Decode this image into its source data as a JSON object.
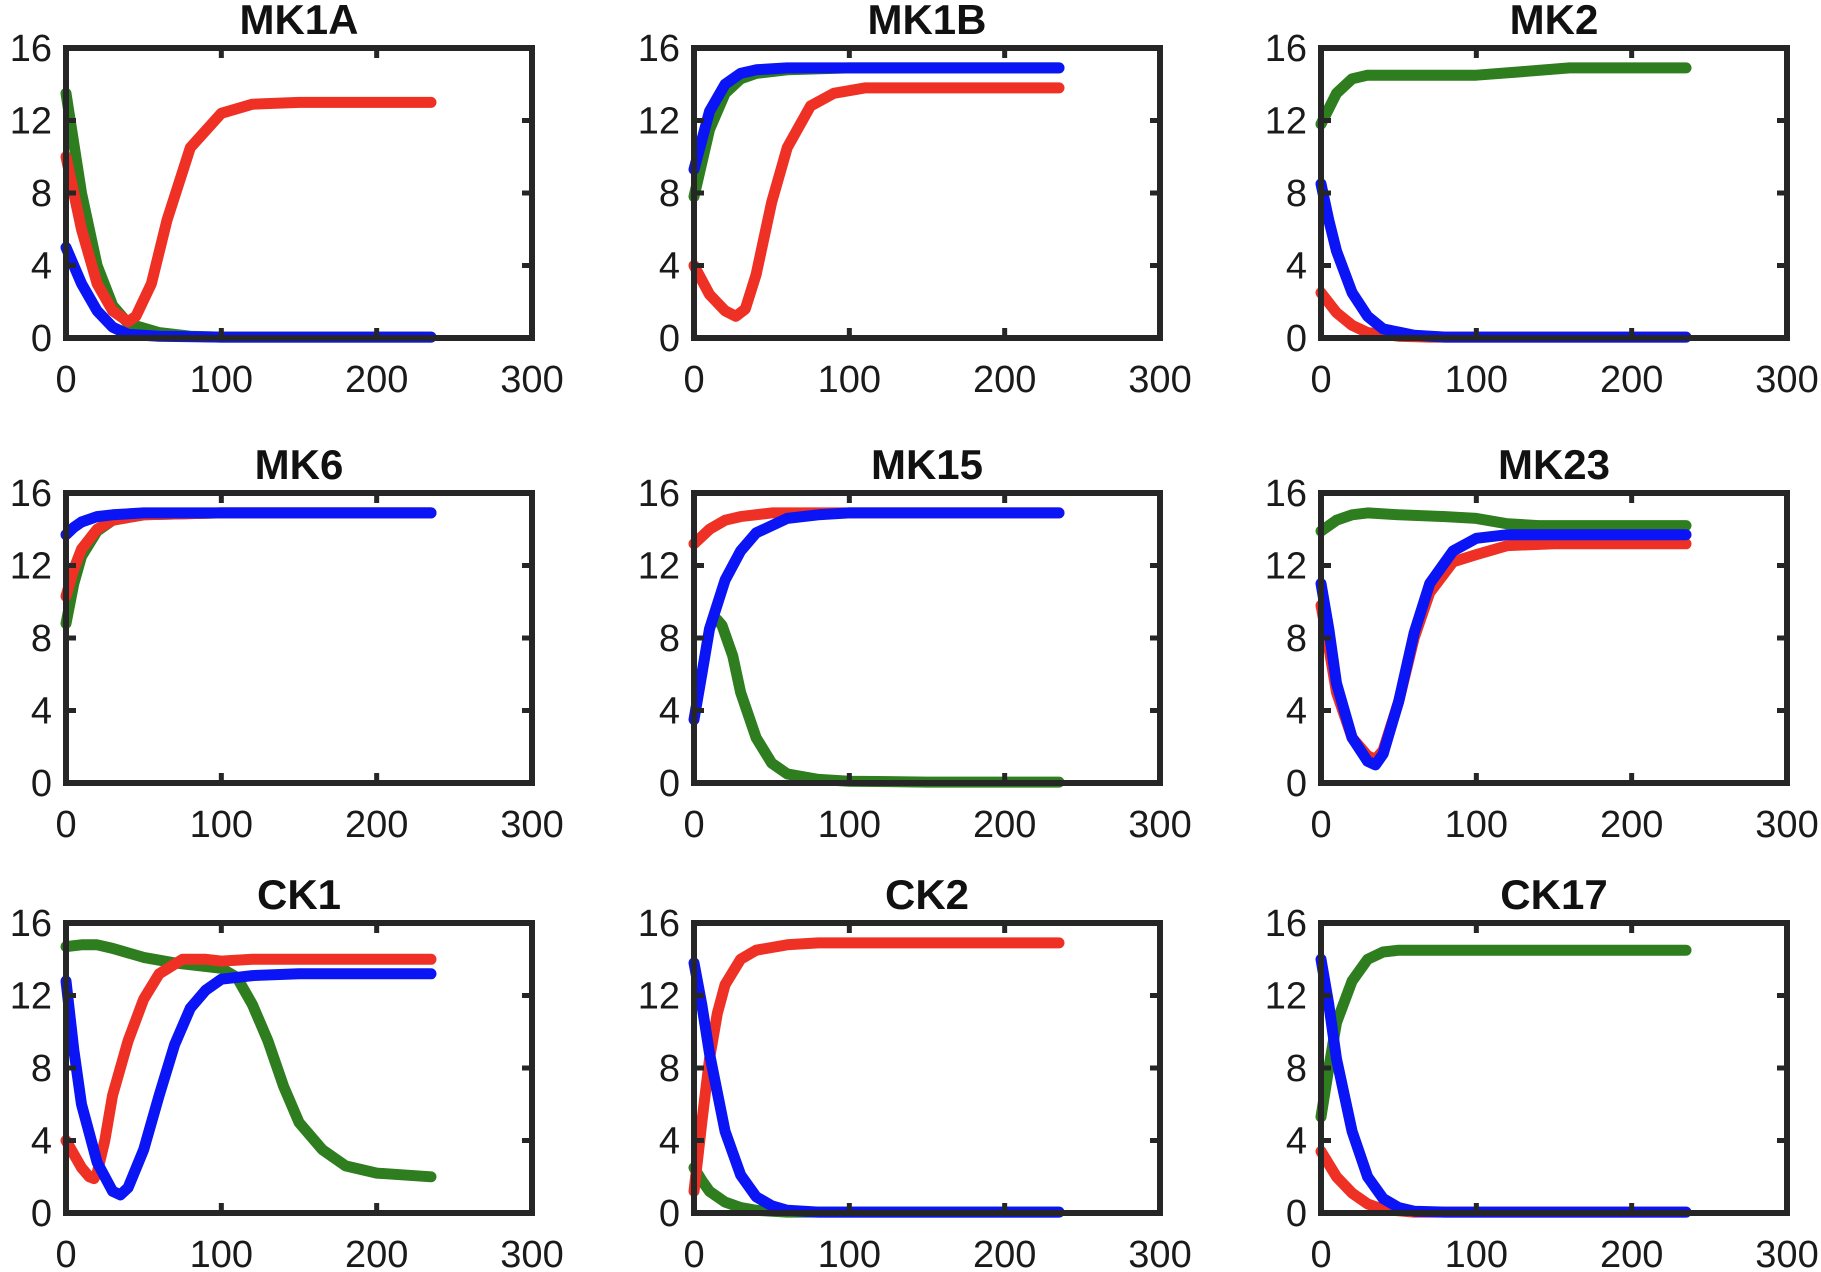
{
  "colors": {
    "red": "#ee3124",
    "green": "#2e7d1e",
    "blue": "#0a14f5"
  },
  "chart_data": [
    {
      "type": "line",
      "title": "MK1A",
      "xlim": [
        0,
        300
      ],
      "ylim": [
        0,
        16
      ],
      "xticks": [
        0,
        100,
        200,
        300
      ],
      "yticks": [
        0,
        4,
        8,
        12,
        16
      ],
      "series": [
        {
          "name": "green",
          "color_key": "green",
          "x": [
            0,
            10,
            20,
            30,
            40,
            60,
            80,
            100,
            150,
            235
          ],
          "y": [
            13.5,
            8,
            4,
            1.8,
            0.8,
            0.3,
            0.1,
            0.05,
            0.05,
            0.05
          ]
        },
        {
          "name": "red",
          "color_key": "red",
          "x": [
            0,
            10,
            20,
            30,
            40,
            45,
            55,
            65,
            80,
            100,
            120,
            150,
            200,
            235
          ],
          "y": [
            10,
            6,
            3,
            1.5,
            0.9,
            1.2,
            3,
            6.5,
            10.5,
            12.4,
            12.9,
            13,
            13,
            13
          ]
        },
        {
          "name": "blue",
          "color_key": "blue",
          "x": [
            0,
            10,
            20,
            30,
            40,
            60,
            100,
            150,
            235
          ],
          "y": [
            5,
            3,
            1.5,
            0.6,
            0.2,
            0.1,
            0.05,
            0.05,
            0.05
          ]
        }
      ]
    },
    {
      "type": "line",
      "title": "MK1B",
      "xlim": [
        0,
        300
      ],
      "ylim": [
        0,
        16
      ],
      "xticks": [
        0,
        100,
        200,
        300
      ],
      "yticks": [
        0,
        4,
        8,
        12,
        16
      ],
      "series": [
        {
          "name": "green",
          "color_key": "green",
          "x": [
            0,
            10,
            20,
            30,
            40,
            60,
            100,
            150,
            235
          ],
          "y": [
            7.8,
            11.5,
            13.5,
            14.3,
            14.6,
            14.8,
            14.9,
            14.9,
            14.9
          ]
        },
        {
          "name": "blue",
          "color_key": "blue",
          "x": [
            0,
            10,
            20,
            30,
            40,
            60,
            100,
            150,
            235
          ],
          "y": [
            9.3,
            12.5,
            14,
            14.6,
            14.8,
            14.9,
            14.9,
            14.9,
            14.9
          ]
        },
        {
          "name": "red",
          "color_key": "red",
          "x": [
            0,
            10,
            20,
            27,
            33,
            40,
            50,
            60,
            75,
            90,
            110,
            150,
            235
          ],
          "y": [
            4,
            2.4,
            1.5,
            1.2,
            1.6,
            3.5,
            7.5,
            10.5,
            12.8,
            13.5,
            13.8,
            13.8,
            13.8
          ]
        }
      ]
    },
    {
      "type": "line",
      "title": "MK2",
      "xlim": [
        0,
        300
      ],
      "ylim": [
        0,
        16
      ],
      "xticks": [
        0,
        100,
        200,
        300
      ],
      "yticks": [
        0,
        4,
        8,
        12,
        16
      ],
      "series": [
        {
          "name": "green",
          "color_key": "green",
          "x": [
            0,
            10,
            20,
            30,
            50,
            80,
            100,
            130,
            160,
            200,
            235
          ],
          "y": [
            11.8,
            13.5,
            14.3,
            14.5,
            14.5,
            14.5,
            14.5,
            14.7,
            14.9,
            14.9,
            14.9
          ]
        },
        {
          "name": "red",
          "color_key": "red",
          "x": [
            0,
            10,
            20,
            30,
            50,
            70,
            100,
            235
          ],
          "y": [
            2.5,
            1.4,
            0.7,
            0.3,
            0.1,
            0.05,
            0.05,
            0.05
          ]
        },
        {
          "name": "blue",
          "color_key": "blue",
          "x": [
            0,
            5,
            10,
            20,
            30,
            40,
            60,
            80,
            100,
            235
          ],
          "y": [
            8.5,
            6.5,
            4.8,
            2.5,
            1.2,
            0.5,
            0.15,
            0.05,
            0.05,
            0.05
          ]
        }
      ]
    },
    {
      "type": "line",
      "title": "MK6",
      "xlim": [
        0,
        300
      ],
      "ylim": [
        0,
        16
      ],
      "xticks": [
        0,
        100,
        200,
        300
      ],
      "yticks": [
        0,
        4,
        8,
        12,
        16
      ],
      "series": [
        {
          "name": "green",
          "color_key": "green",
          "x": [
            0,
            5,
            10,
            20,
            30,
            50,
            100,
            235
          ],
          "y": [
            8.8,
            11,
            12.5,
            13.9,
            14.5,
            14.8,
            14.9,
            14.9
          ]
        },
        {
          "name": "red",
          "color_key": "red",
          "x": [
            0,
            5,
            10,
            20,
            30,
            50,
            100,
            235
          ],
          "y": [
            10.3,
            11.8,
            12.9,
            14,
            14.5,
            14.8,
            14.9,
            14.9
          ]
        },
        {
          "name": "blue",
          "color_key": "blue",
          "x": [
            0,
            5,
            10,
            20,
            30,
            50,
            100,
            235
          ],
          "y": [
            13.7,
            14.1,
            14.4,
            14.7,
            14.8,
            14.9,
            14.9,
            14.9
          ]
        }
      ]
    },
    {
      "type": "line",
      "title": "MK15",
      "xlim": [
        0,
        300
      ],
      "ylim": [
        0,
        16
      ],
      "xticks": [
        0,
        100,
        200,
        300
      ],
      "yticks": [
        0,
        4,
        8,
        12,
        16
      ],
      "series": [
        {
          "name": "red",
          "color_key": "red",
          "x": [
            0,
            10,
            20,
            30,
            50,
            70,
            100,
            235
          ],
          "y": [
            13.2,
            14,
            14.5,
            14.7,
            14.9,
            14.9,
            14.9,
            14.9
          ]
        },
        {
          "name": "green",
          "color_key": "green",
          "x": [
            15,
            18,
            25,
            30,
            40,
            50,
            60,
            80,
            100,
            150,
            235
          ],
          "y": [
            9,
            8.7,
            7,
            5,
            2.5,
            1.1,
            0.5,
            0.2,
            0.1,
            0.05,
            0.05
          ]
        },
        {
          "name": "blue",
          "color_key": "blue",
          "x": [
            0,
            5,
            10,
            20,
            30,
            40,
            60,
            80,
            100,
            235
          ],
          "y": [
            3.5,
            6,
            8.5,
            11.2,
            12.8,
            13.8,
            14.6,
            14.8,
            14.9,
            14.9
          ]
        }
      ]
    },
    {
      "type": "line",
      "title": "MK23",
      "xlim": [
        0,
        300
      ],
      "ylim": [
        0,
        16
      ],
      "xticks": [
        0,
        100,
        200,
        300
      ],
      "yticks": [
        0,
        4,
        8,
        12,
        16
      ],
      "series": [
        {
          "name": "green",
          "color_key": "green",
          "x": [
            0,
            10,
            20,
            30,
            50,
            80,
            100,
            120,
            140,
            200,
            235
          ],
          "y": [
            13.9,
            14.5,
            14.8,
            14.9,
            14.8,
            14.7,
            14.6,
            14.3,
            14.2,
            14.2,
            14.2
          ]
        },
        {
          "name": "red",
          "color_key": "red",
          "x": [
            0,
            5,
            10,
            20,
            30,
            35,
            40,
            50,
            60,
            70,
            85,
            100,
            120,
            150,
            235
          ],
          "y": [
            9.8,
            7.5,
            5,
            2.5,
            1.5,
            1.3,
            1.8,
            4.5,
            8,
            10.5,
            12.2,
            12.6,
            13.1,
            13.2,
            13.2
          ]
        },
        {
          "name": "blue",
          "color_key": "blue",
          "x": [
            0,
            5,
            10,
            20,
            30,
            35,
            40,
            50,
            60,
            70,
            85,
            100,
            120,
            150,
            235
          ],
          "y": [
            11,
            8.5,
            5.5,
            2.5,
            1.2,
            1,
            1.6,
            4.5,
            8.3,
            11,
            12.8,
            13.5,
            13.7,
            13.7,
            13.7
          ]
        }
      ]
    },
    {
      "type": "line",
      "title": "CK1",
      "xlim": [
        0,
        300
      ],
      "ylim": [
        0,
        16
      ],
      "xticks": [
        0,
        100,
        200,
        300
      ],
      "yticks": [
        0,
        4,
        8,
        12,
        16
      ],
      "series": [
        {
          "name": "green",
          "color_key": "green",
          "x": [
            0,
            10,
            20,
            30,
            50,
            70,
            100,
            110,
            120,
            130,
            140,
            150,
            165,
            180,
            200,
            235
          ],
          "y": [
            14.7,
            14.8,
            14.8,
            14.6,
            14.1,
            13.8,
            13.5,
            13,
            11.5,
            9.5,
            7,
            5,
            3.5,
            2.6,
            2.2,
            2
          ]
        },
        {
          "name": "red",
          "color_key": "red",
          "x": [
            0,
            10,
            15,
            18,
            20,
            25,
            30,
            40,
            50,
            60,
            75,
            90,
            100,
            120,
            150,
            235
          ],
          "y": [
            4,
            2.5,
            2,
            1.9,
            2.2,
            4,
            6.5,
            9.5,
            11.8,
            13.2,
            14,
            14,
            13.9,
            14,
            14,
            14
          ]
        },
        {
          "name": "blue",
          "color_key": "blue",
          "x": [
            0,
            5,
            10,
            20,
            30,
            35,
            40,
            50,
            60,
            70,
            80,
            90,
            100,
            120,
            150,
            235
          ],
          "y": [
            12.8,
            9,
            6,
            2.8,
            1.2,
            1,
            1.4,
            3.5,
            6.5,
            9.3,
            11.3,
            12.3,
            12.9,
            13.1,
            13.2,
            13.2
          ]
        }
      ]
    },
    {
      "type": "line",
      "title": "CK2",
      "xlim": [
        0,
        300
      ],
      "ylim": [
        0,
        16
      ],
      "xticks": [
        0,
        100,
        200,
        300
      ],
      "yticks": [
        0,
        4,
        8,
        12,
        16
      ],
      "series": [
        {
          "name": "green",
          "color_key": "green",
          "x": [
            0,
            5,
            10,
            20,
            30,
            40,
            60,
            80,
            235
          ],
          "y": [
            2.5,
            1.8,
            1.2,
            0.6,
            0.3,
            0.15,
            0.05,
            0.05,
            0.05
          ]
        },
        {
          "name": "red",
          "color_key": "red",
          "x": [
            0,
            5,
            10,
            15,
            20,
            30,
            40,
            60,
            80,
            100,
            150,
            235
          ],
          "y": [
            1.2,
            5,
            8.5,
            11,
            12.6,
            14,
            14.5,
            14.8,
            14.9,
            14.9,
            14.9,
            14.9
          ]
        },
        {
          "name": "blue",
          "color_key": "blue",
          "x": [
            0,
            5,
            10,
            20,
            30,
            40,
            50,
            60,
            80,
            100,
            235
          ],
          "y": [
            13.8,
            11.5,
            8.8,
            4.5,
            2.1,
            0.9,
            0.4,
            0.15,
            0.05,
            0.05,
            0.05
          ]
        }
      ]
    },
    {
      "type": "line",
      "title": "CK17",
      "xlim": [
        0,
        300
      ],
      "ylim": [
        0,
        16
      ],
      "xticks": [
        0,
        100,
        200,
        300
      ],
      "yticks": [
        0,
        4,
        8,
        12,
        16
      ],
      "series": [
        {
          "name": "green",
          "color_key": "green",
          "x": [
            0,
            5,
            10,
            20,
            30,
            40,
            50,
            70,
            100,
            150,
            235
          ],
          "y": [
            5.3,
            8,
            10.5,
            12.8,
            14,
            14.4,
            14.5,
            14.5,
            14.5,
            14.5,
            14.5
          ]
        },
        {
          "name": "red",
          "color_key": "red",
          "x": [
            0,
            10,
            20,
            30,
            40,
            60,
            80,
            235
          ],
          "y": [
            3.4,
            2,
            1.1,
            0.5,
            0.2,
            0.05,
            0.05,
            0.05
          ]
        },
        {
          "name": "blue",
          "color_key": "blue",
          "x": [
            0,
            5,
            10,
            20,
            30,
            40,
            50,
            60,
            80,
            100,
            235
          ],
          "y": [
            14,
            11.5,
            8.5,
            4.5,
            2,
            0.8,
            0.3,
            0.1,
            0.05,
            0.05,
            0.05
          ]
        }
      ]
    }
  ]
}
